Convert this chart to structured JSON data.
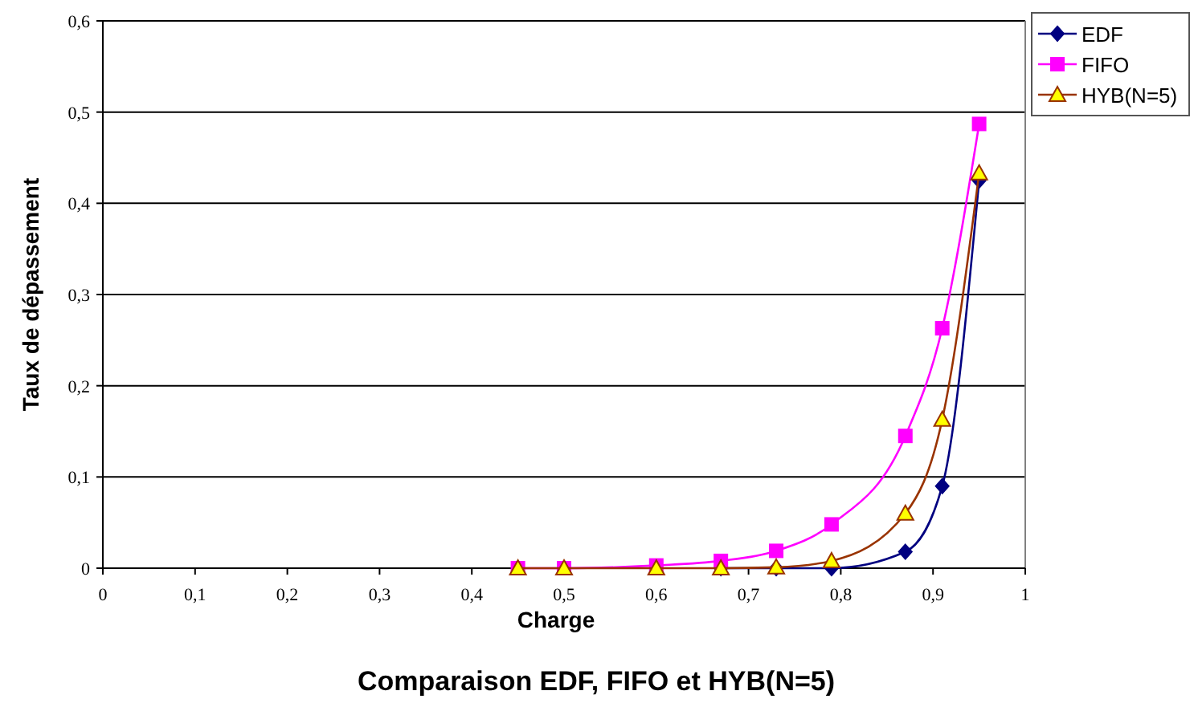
{
  "chart_data": {
    "type": "line",
    "title": "Comparaison EDF, FIFO et HYB(N=5)",
    "xlabel": "Charge",
    "ylabel": "Taux de dépassement",
    "x": [
      0.45,
      0.5,
      0.6,
      0.67,
      0.73,
      0.79,
      0.87,
      0.91,
      0.95
    ],
    "series": [
      {
        "name": "EDF",
        "color": "#000080",
        "marker": "diamond",
        "values": [
          null,
          null,
          null,
          0,
          0,
          0,
          0.018,
          0.09,
          0.425
        ]
      },
      {
        "name": "FIFO",
        "color": "#ff00ff",
        "marker": "square",
        "values": [
          0,
          0,
          0.003,
          0.008,
          0.019,
          0.048,
          0.145,
          0.263,
          0.487
        ]
      },
      {
        "name": "HYB(N=5)",
        "color": "#993300",
        "marker": "triangle",
        "values": [
          0,
          0,
          0,
          0,
          0.001,
          0.008,
          0.06,
          0.163,
          0.433
        ]
      }
    ],
    "xlim": [
      0,
      1
    ],
    "xticks": [
      {
        "value": 0,
        "label": "0"
      },
      {
        "value": 0.1,
        "label": "0,1"
      },
      {
        "value": 0.2,
        "label": "0,2"
      },
      {
        "value": 0.3,
        "label": "0,3"
      },
      {
        "value": 0.4,
        "label": "0,4"
      },
      {
        "value": 0.5,
        "label": "0,5"
      },
      {
        "value": 0.6,
        "label": "0,6"
      },
      {
        "value": 0.7,
        "label": "0,7"
      },
      {
        "value": 0.8,
        "label": "0,8"
      },
      {
        "value": 0.9,
        "label": "0,9"
      },
      {
        "value": 1,
        "label": "1"
      }
    ],
    "ylim": [
      0,
      0.6
    ],
    "yticks": [
      {
        "value": 0,
        "label": "0"
      },
      {
        "value": 0.1,
        "label": "0,1"
      },
      {
        "value": 0.2,
        "label": "0,2"
      },
      {
        "value": 0.3,
        "label": "0,3"
      },
      {
        "value": 0.4,
        "label": "0,4"
      },
      {
        "value": 0.5,
        "label": "0,5"
      },
      {
        "value": 0.6,
        "label": "0,6"
      }
    ],
    "grid": "y",
    "legend": "top right"
  }
}
